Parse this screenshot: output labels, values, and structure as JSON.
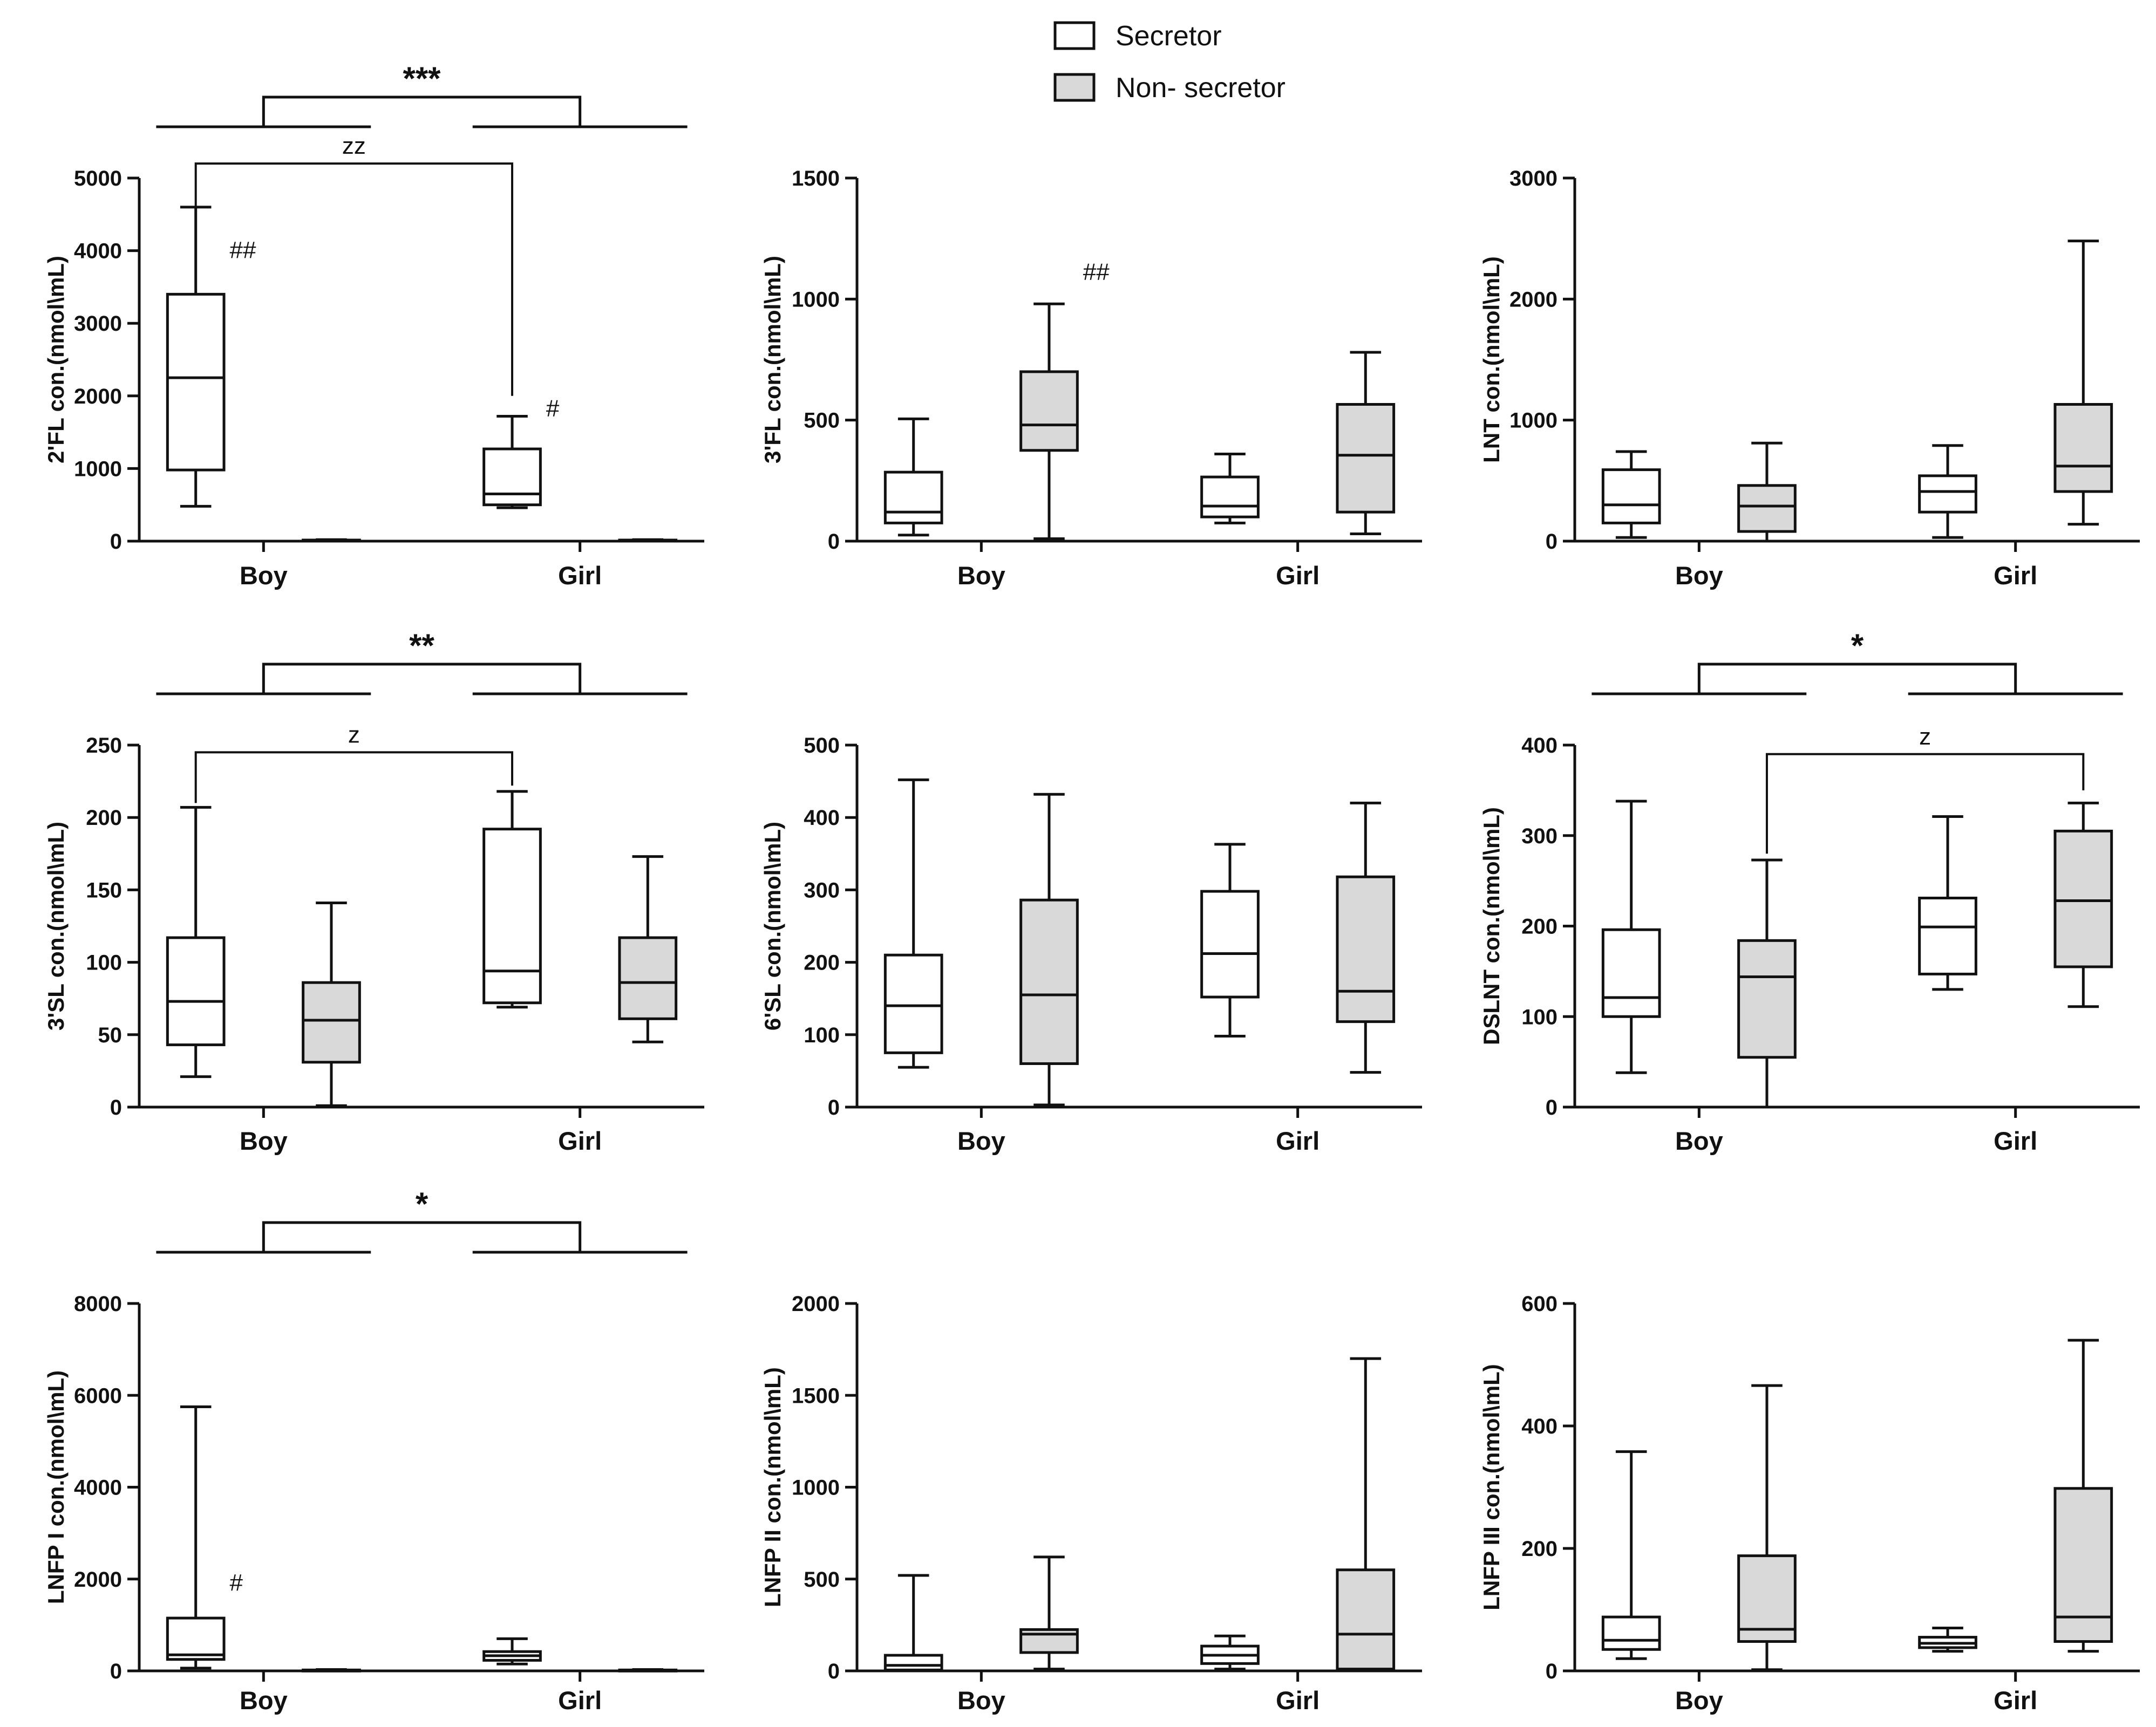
{
  "legend": {
    "items": [
      {
        "label": "Secretor",
        "color": "#ffffff"
      },
      {
        "label": "Non- secretor",
        "color": "#d9d9d9"
      }
    ]
  },
  "colors": {
    "secretor": "#ffffff",
    "non_secretor": "#d9d9d9",
    "stroke": "#111111"
  },
  "chart_data": [
    {
      "id": "2fl",
      "type": "box",
      "ylabel": "2'FL con.(nmol\\mL)",
      "ylim": [
        0,
        5000
      ],
      "yticks": [
        0,
        1000,
        2000,
        3000,
        4000,
        5000
      ],
      "categories": [
        "Boy",
        "Girl"
      ],
      "series": [
        {
          "name": "Secretor",
          "boxes": [
            {
              "whisker_low": 480,
              "q1": 980,
              "median": 2250,
              "q3": 3400,
              "whisker_high": 4600
            },
            {
              "whisker_low": 460,
              "q1": 500,
              "median": 650,
              "q3": 1270,
              "whisker_high": 1720
            }
          ]
        },
        {
          "name": "Non- secretor",
          "boxes": [
            {
              "whisker_low": 0,
              "q1": 0,
              "median": 8,
              "q3": 15,
              "whisker_high": 20
            },
            {
              "whisker_low": 0,
              "q1": 0,
              "median": 8,
              "q3": 15,
              "whisker_high": 20
            }
          ]
        }
      ],
      "annotations": [
        {
          "text": "##",
          "category": 0,
          "series": 0,
          "y": 3900
        },
        {
          "text": "#",
          "category": 1,
          "series": 0,
          "y": 1720
        }
      ],
      "brackets": [
        {
          "type": "group",
          "label": "***"
        },
        {
          "type": "pair",
          "label": "zz",
          "from_category": 0,
          "from_series": 0,
          "to_category": 1,
          "to_series": 0,
          "y": 5200,
          "from_y": 4600,
          "to_y": 2000
        }
      ]
    },
    {
      "id": "3fl",
      "type": "box",
      "ylabel": "3'FL con.(nmol\\mL)",
      "ylim": [
        0,
        1500
      ],
      "yticks": [
        0,
        500,
        1000,
        1500
      ],
      "categories": [
        "Boy",
        "Girl"
      ],
      "series": [
        {
          "name": "Secretor",
          "boxes": [
            {
              "whisker_low": 25,
              "q1": 75,
              "median": 120,
              "q3": 285,
              "whisker_high": 505
            },
            {
              "whisker_low": 75,
              "q1": 100,
              "median": 145,
              "q3": 265,
              "whisker_high": 360
            }
          ]
        },
        {
          "name": "Non- secretor",
          "boxes": [
            {
              "whisker_low": 10,
              "q1": 375,
              "median": 480,
              "q3": 700,
              "whisker_high": 980
            },
            {
              "whisker_low": 30,
              "q1": 120,
              "median": 355,
              "q3": 565,
              "whisker_high": 780
            }
          ]
        }
      ],
      "annotations": [
        {
          "text": "##",
          "category": 0,
          "series": 1,
          "y": 1080
        }
      ],
      "brackets": []
    },
    {
      "id": "lnt",
      "type": "box",
      "ylabel": "LNT con.(nmol\\mL)",
      "ylim": [
        0,
        3000
      ],
      "yticks": [
        0,
        1000,
        2000,
        3000
      ],
      "categories": [
        "Boy",
        "Girl"
      ],
      "series": [
        {
          "name": "Secretor",
          "boxes": [
            {
              "whisker_low": 30,
              "q1": 150,
              "median": 300,
              "q3": 590,
              "whisker_high": 740
            },
            {
              "whisker_low": 30,
              "q1": 240,
              "median": 410,
              "q3": 540,
              "whisker_high": 790
            }
          ]
        },
        {
          "name": "Non- secretor",
          "boxes": [
            {
              "whisker_low": 0,
              "q1": 80,
              "median": 290,
              "q3": 460,
              "whisker_high": 810
            },
            {
              "whisker_low": 140,
              "q1": 410,
              "median": 620,
              "q3": 1130,
              "whisker_high": 2480
            }
          ]
        }
      ],
      "annotations": [],
      "brackets": []
    },
    {
      "id": "3sl",
      "type": "box",
      "ylabel": "3'SL con.(nmol\\mL)",
      "ylim": [
        0,
        250
      ],
      "yticks": [
        0,
        50,
        100,
        150,
        200,
        250
      ],
      "categories": [
        "Boy",
        "Girl"
      ],
      "series": [
        {
          "name": "Secretor",
          "boxes": [
            {
              "whisker_low": 21,
              "q1": 43,
              "median": 73,
              "q3": 117,
              "whisker_high": 207
            },
            {
              "whisker_low": 69,
              "q1": 72,
              "median": 94,
              "q3": 192,
              "whisker_high": 218
            }
          ]
        },
        {
          "name": "Non- secretor",
          "boxes": [
            {
              "whisker_low": 1,
              "q1": 31,
              "median": 60,
              "q3": 86,
              "whisker_high": 141
            },
            {
              "whisker_low": 45,
              "q1": 61,
              "median": 86,
              "q3": 117,
              "whisker_high": 173
            }
          ]
        }
      ],
      "annotations": [],
      "brackets": [
        {
          "type": "group",
          "label": "**"
        },
        {
          "type": "pair",
          "label": "z",
          "from_category": 0,
          "from_series": 0,
          "to_category": 1,
          "to_series": 0,
          "y": 245,
          "from_y": 210,
          "to_y": 222
        }
      ]
    },
    {
      "id": "6sl",
      "type": "box",
      "ylabel": "6'SL con.(nmol\\mL)",
      "ylim": [
        0,
        500
      ],
      "yticks": [
        0,
        100,
        200,
        300,
        400,
        500
      ],
      "categories": [
        "Boy",
        "Girl"
      ],
      "series": [
        {
          "name": "Secretor",
          "boxes": [
            {
              "whisker_low": 55,
              "q1": 75,
              "median": 140,
              "q3": 210,
              "whisker_high": 452
            },
            {
              "whisker_low": 98,
              "q1": 152,
              "median": 212,
              "q3": 298,
              "whisker_high": 363
            }
          ]
        },
        {
          "name": "Non- secretor",
          "boxes": [
            {
              "whisker_low": 3,
              "q1": 60,
              "median": 155,
              "q3": 286,
              "whisker_high": 432
            },
            {
              "whisker_low": 48,
              "q1": 118,
              "median": 160,
              "q3": 318,
              "whisker_high": 420
            }
          ]
        }
      ],
      "annotations": [],
      "brackets": []
    },
    {
      "id": "dslnt",
      "type": "box",
      "ylabel": "DSLNT con.(nmol\\mL)",
      "ylim": [
        0,
        400
      ],
      "yticks": [
        0,
        100,
        200,
        300,
        400
      ],
      "categories": [
        "Boy",
        "Girl"
      ],
      "series": [
        {
          "name": "Secretor",
          "boxes": [
            {
              "whisker_low": 38,
              "q1": 100,
              "median": 121,
              "q3": 196,
              "whisker_high": 338
            },
            {
              "whisker_low": 130,
              "q1": 147,
              "median": 199,
              "q3": 231,
              "whisker_high": 321
            }
          ]
        },
        {
          "name": "Non- secretor",
          "boxes": [
            {
              "whisker_low": 0,
              "q1": 55,
              "median": 144,
              "q3": 184,
              "whisker_high": 273
            },
            {
              "whisker_low": 111,
              "q1": 155,
              "median": 228,
              "q3": 305,
              "whisker_high": 336
            }
          ]
        }
      ],
      "annotations": [],
      "brackets": [
        {
          "type": "group",
          "label": "*"
        },
        {
          "type": "pair",
          "label": "z",
          "from_category": 0,
          "from_series": 1,
          "to_category": 1,
          "to_series": 1,
          "y": 390,
          "from_y": 280,
          "to_y": 350
        }
      ]
    },
    {
      "id": "lnfp1",
      "type": "box",
      "ylabel": "LNFP I con.(nmol\\mL)",
      "ylim": [
        0,
        8000
      ],
      "yticks": [
        0,
        2000,
        4000,
        6000,
        8000
      ],
      "categories": [
        "Boy",
        "Girl"
      ],
      "series": [
        {
          "name": "Secretor",
          "boxes": [
            {
              "whisker_low": 60,
              "q1": 250,
              "median": 350,
              "q3": 1150,
              "whisker_high": 5750
            },
            {
              "whisker_low": 150,
              "q1": 230,
              "median": 330,
              "q3": 420,
              "whisker_high": 700
            }
          ]
        },
        {
          "name": "Non- secretor",
          "boxes": [
            {
              "whisker_low": 0,
              "q1": 0,
              "median": 10,
              "q3": 20,
              "whisker_high": 30
            },
            {
              "whisker_low": 0,
              "q1": 0,
              "median": 10,
              "q3": 20,
              "whisker_high": 30
            }
          ]
        }
      ],
      "annotations": [
        {
          "text": "#",
          "category": 0,
          "series": 0,
          "y": 1750
        }
      ],
      "brackets": [
        {
          "type": "group",
          "label": "*"
        }
      ]
    },
    {
      "id": "lnfp2",
      "type": "box",
      "ylabel": "LNFP II con.(nmol\\mL)",
      "ylim": [
        0,
        2000
      ],
      "yticks": [
        0,
        500,
        1000,
        1500,
        2000
      ],
      "categories": [
        "Boy",
        "Girl"
      ],
      "series": [
        {
          "name": "Secretor",
          "boxes": [
            {
              "whisker_low": 0,
              "q1": 5,
              "median": 30,
              "q3": 85,
              "whisker_high": 520
            },
            {
              "whisker_low": 10,
              "q1": 40,
              "median": 85,
              "q3": 135,
              "whisker_high": 190
            }
          ]
        },
        {
          "name": "Non- secretor",
          "boxes": [
            {
              "whisker_low": 10,
              "q1": 100,
              "median": 200,
              "q3": 225,
              "whisker_high": 620
            },
            {
              "whisker_low": 0,
              "q1": 10,
              "median": 200,
              "q3": 550,
              "whisker_high": 1700
            }
          ]
        }
      ],
      "annotations": [],
      "brackets": []
    },
    {
      "id": "lnfp3",
      "type": "box",
      "ylabel": "LNFP III con.(nmol\\mL)",
      "ylim": [
        0,
        600
      ],
      "yticks": [
        0,
        200,
        400,
        600
      ],
      "categories": [
        "Boy",
        "Girl"
      ],
      "series": [
        {
          "name": "Secretor",
          "boxes": [
            {
              "whisker_low": 20,
              "q1": 35,
              "median": 50,
              "q3": 88,
              "whisker_high": 358
            },
            {
              "whisker_low": 32,
              "q1": 38,
              "median": 45,
              "q3": 55,
              "whisker_high": 70
            }
          ]
        },
        {
          "name": "Non- secretor",
          "boxes": [
            {
              "whisker_low": 2,
              "q1": 48,
              "median": 68,
              "q3": 188,
              "whisker_high": 466
            },
            {
              "whisker_low": 32,
              "q1": 48,
              "median": 88,
              "q3": 298,
              "whisker_high": 540
            }
          ]
        }
      ],
      "annotations": [],
      "brackets": []
    }
  ]
}
